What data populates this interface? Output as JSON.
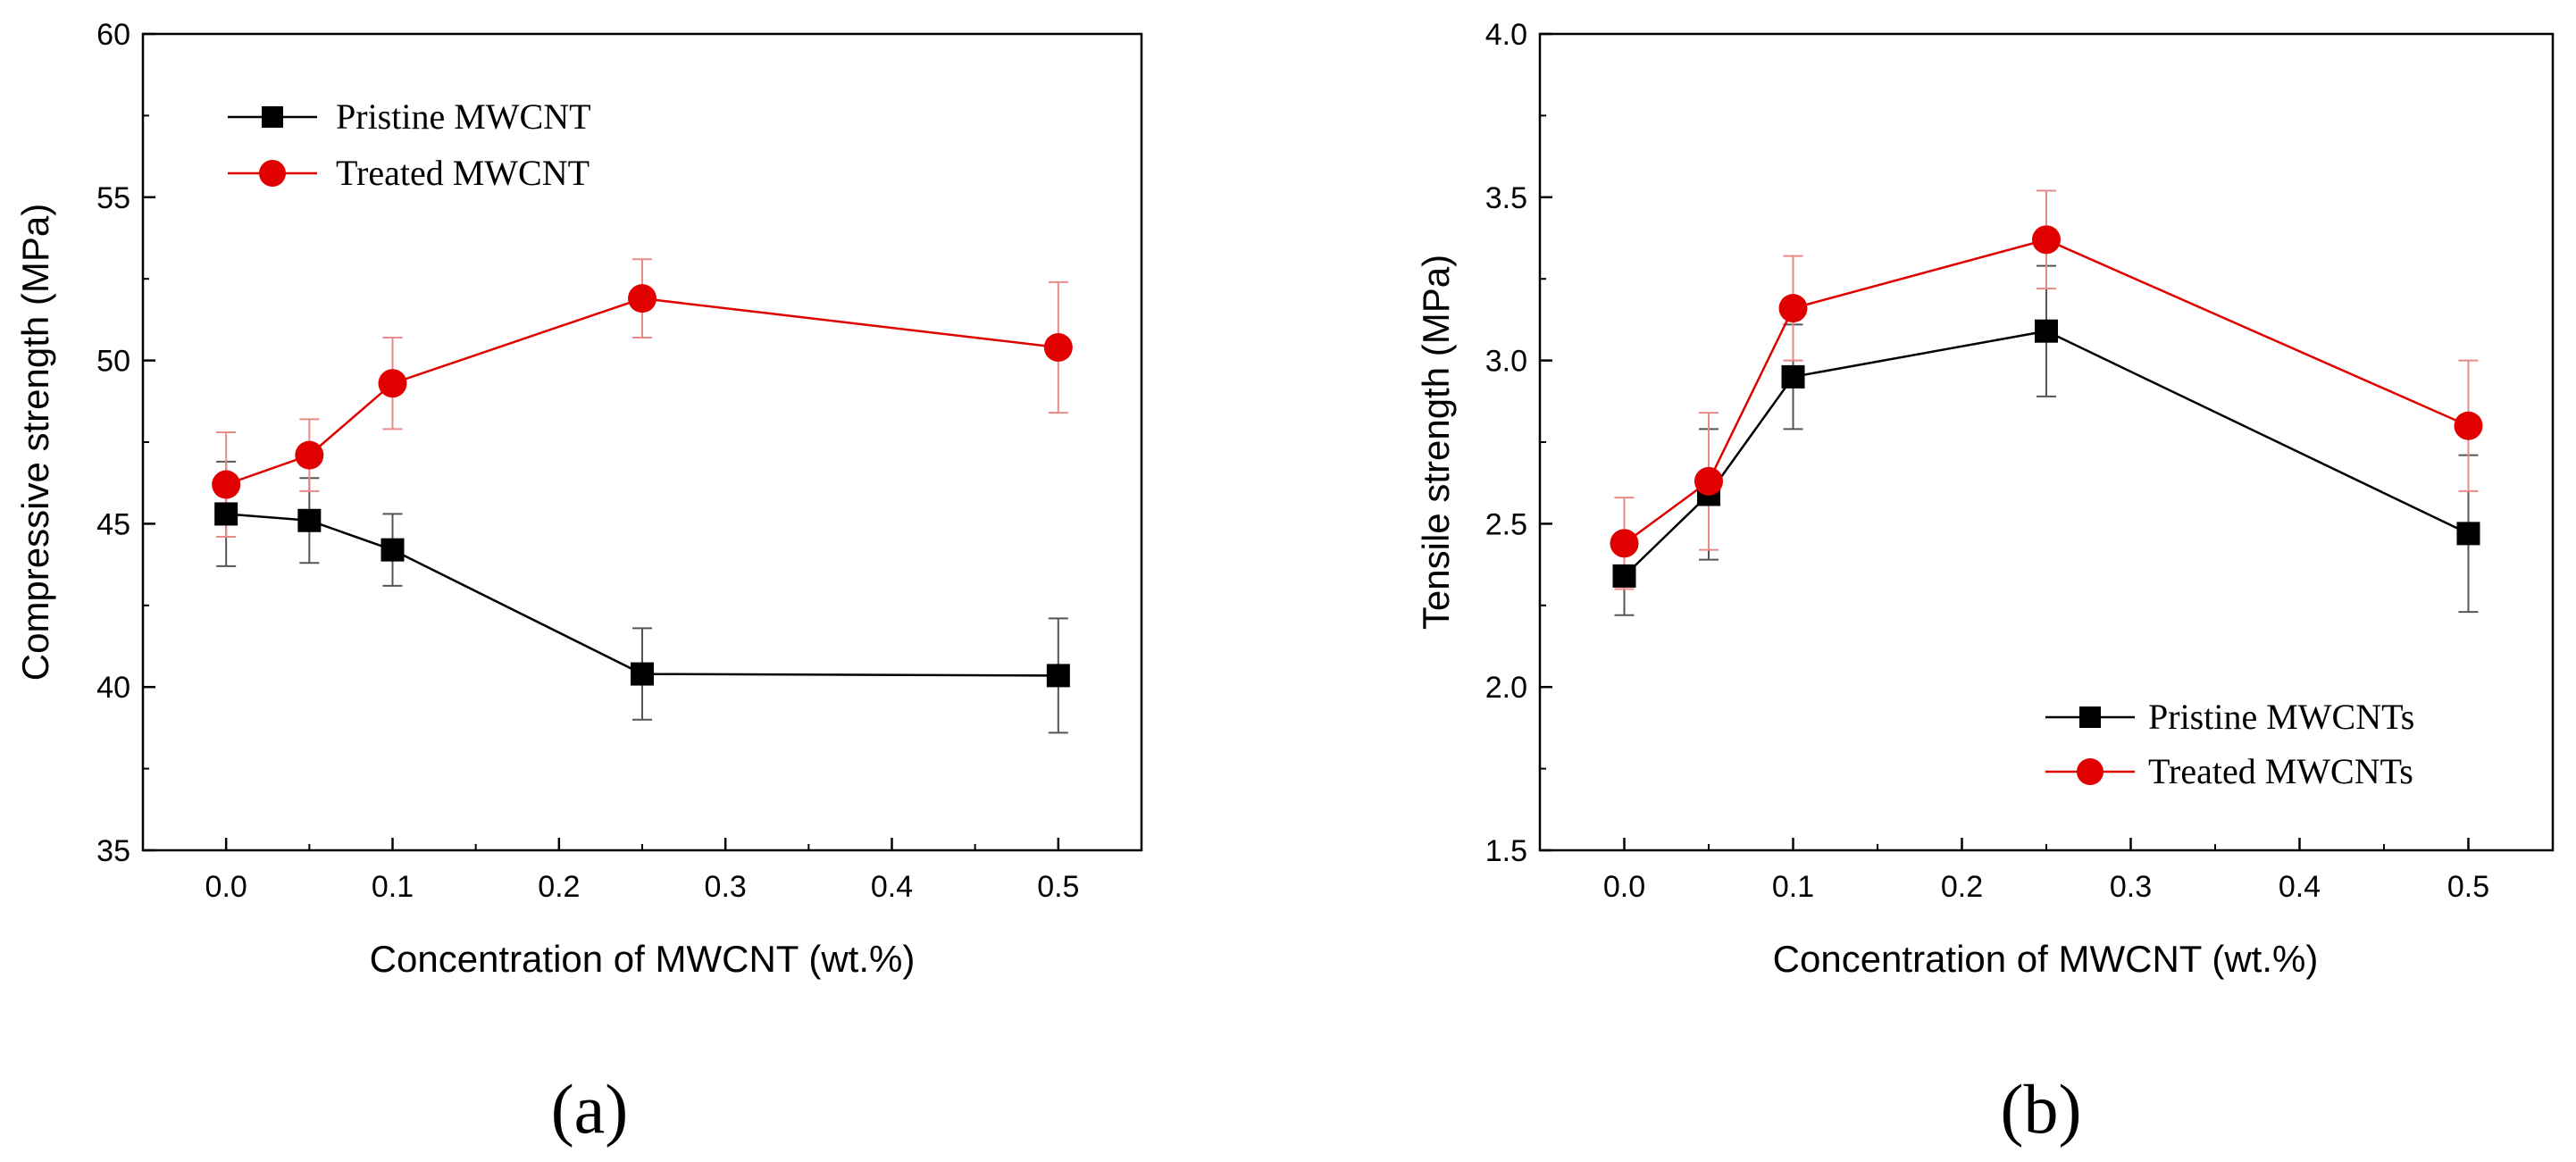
{
  "chart_data": [
    {
      "type": "line",
      "panel_label": "(a)",
      "xlabel": "Concentration of MWCNT (wt.%)",
      "ylabel": "Compressive strength (MPa)",
      "xlim": [
        -0.05,
        0.55
      ],
      "ylim": [
        35,
        60
      ],
      "xticks": [
        "0.0",
        "0.1",
        "0.2",
        "0.3",
        "0.4",
        "0.5"
      ],
      "xtick_values": [
        0.0,
        0.1,
        0.2,
        0.3,
        0.4,
        0.5
      ],
      "yticks": [
        "35",
        "40",
        "45",
        "50",
        "55",
        "60"
      ],
      "ytick_values": [
        35,
        40,
        45,
        50,
        55,
        60
      ],
      "legend_position": "top-left",
      "x": [
        0.0,
        0.05,
        0.1,
        0.25,
        0.5
      ],
      "series": [
        {
          "name": "Pristine MWCNT",
          "color": "#000000",
          "marker": "square",
          "values": [
            45.3,
            45.1,
            44.2,
            40.4,
            40.35
          ],
          "errors": [
            1.6,
            1.3,
            1.1,
            1.4,
            1.75
          ]
        },
        {
          "name": "Treated MWCNT",
          "color": "#e00000",
          "marker": "circle",
          "values": [
            46.2,
            47.1,
            49.3,
            51.9,
            50.4
          ],
          "errors": [
            1.6,
            1.1,
            1.4,
            1.2,
            2.0
          ]
        }
      ]
    },
    {
      "type": "line",
      "panel_label": "(b)",
      "xlabel": "Concentration of MWCNT (wt.%)",
      "ylabel": "Tensile strength (MPa)",
      "xlim": [
        -0.05,
        0.55
      ],
      "ylim": [
        1.5,
        4.0
      ],
      "xticks": [
        "0.0",
        "0.1",
        "0.2",
        "0.3",
        "0.4",
        "0.5"
      ],
      "xtick_values": [
        0.0,
        0.1,
        0.2,
        0.3,
        0.4,
        0.5
      ],
      "yticks": [
        "1.5",
        "2.0",
        "2.5",
        "3.0",
        "3.5",
        "4.0"
      ],
      "ytick_values": [
        1.5,
        2.0,
        2.5,
        3.0,
        3.5,
        4.0
      ],
      "legend_position": "bottom-right",
      "x": [
        0.0,
        0.05,
        0.1,
        0.25,
        0.5
      ],
      "series": [
        {
          "name": "Pristine MWCNTs",
          "color": "#000000",
          "marker": "square",
          "values": [
            2.34,
            2.59,
            2.95,
            3.09,
            2.47
          ],
          "errors": [
            0.12,
            0.2,
            0.16,
            0.2,
            0.24
          ]
        },
        {
          "name": "Treated MWCNTs",
          "color": "#e00000",
          "marker": "circle",
          "values": [
            2.44,
            2.63,
            3.16,
            3.37,
            2.8
          ],
          "errors": [
            0.14,
            0.21,
            0.16,
            0.15,
            0.2
          ]
        }
      ]
    }
  ]
}
